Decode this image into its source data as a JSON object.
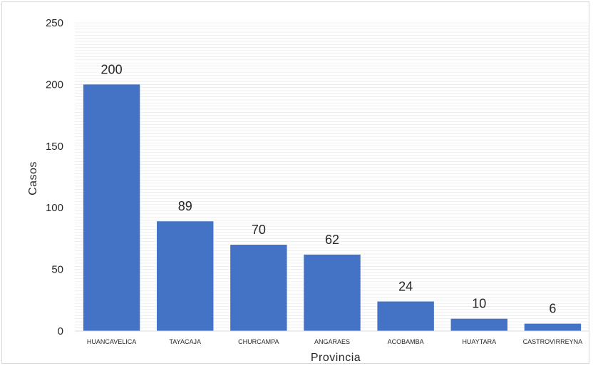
{
  "chart_data": {
    "type": "bar",
    "title": "",
    "xlabel": "Provincia",
    "ylabel": "Casos",
    "categories": [
      "HUANCAVELICA",
      "TAYACAJA",
      "CHURCAMPA",
      "ANGARAES",
      "ACOBAMBA",
      "HUAYTARA",
      "CASTROVIRREYNA"
    ],
    "values": [
      200,
      89,
      70,
      62,
      24,
      10,
      6
    ],
    "ylim": [
      0,
      250
    ],
    "yticks": [
      "0",
      "50",
      "100",
      "150",
      "200",
      "250"
    ],
    "data_labels": [
      "200",
      "89",
      "70",
      "62",
      "24",
      "10",
      "6"
    ],
    "grid": true,
    "bar_color": "#4472c4",
    "grid_color": "#e3e3e3"
  }
}
